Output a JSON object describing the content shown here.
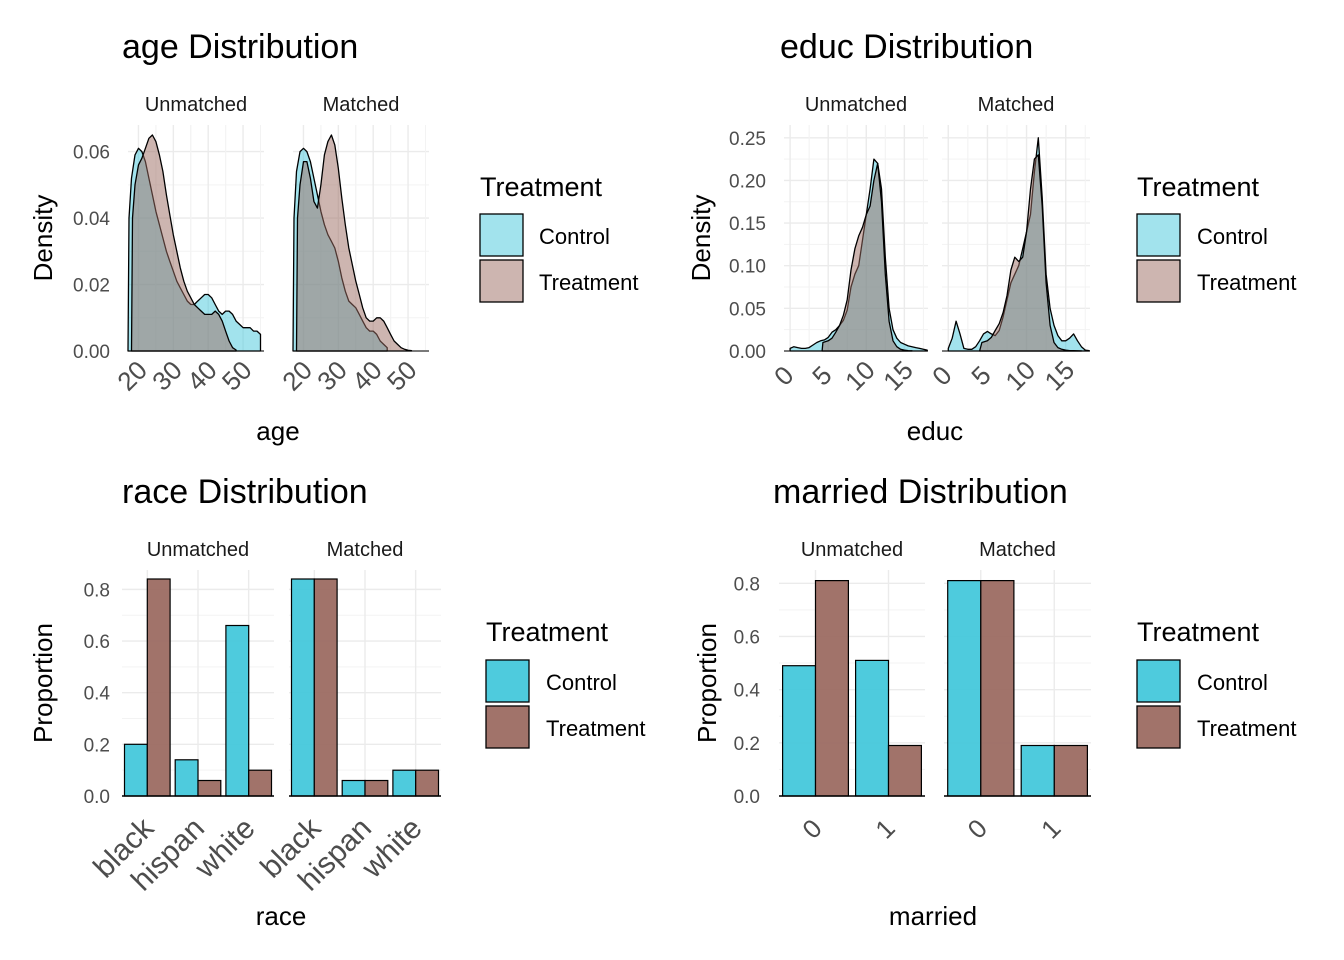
{
  "colors": {
    "control": "#45C8DB",
    "treatment": "#9C6B62"
  },
  "chart_data": [
    {
      "type": "area",
      "title": "age Distribution",
      "xlabel": "age",
      "ylabel": "Density",
      "facets": [
        "Unmatched",
        "Matched"
      ],
      "xlim": [
        17,
        56
      ],
      "ylim": [
        0,
        0.068
      ],
      "xticks": [
        20,
        30,
        40,
        50
      ],
      "xtick_labels": [
        "20",
        "30",
        "40",
        "50"
      ],
      "yticks": [
        0,
        0.02,
        0.04,
        0.06
      ],
      "ytick_labels": [
        "0.00",
        "0.02",
        "0.04",
        "0.06"
      ],
      "grid": true,
      "legend_title": "Treatment",
      "legend": [
        "Control",
        "Treatment"
      ],
      "legend_position": "right",
      "panels": [
        {
          "name": "Unmatched",
          "series": [
            {
              "name": "Control",
              "x": [
                17,
                17.3,
                18,
                19,
                20,
                21,
                22,
                23,
                24,
                25,
                26,
                27,
                28,
                29,
                30,
                31,
                32,
                33,
                34,
                35,
                36,
                37,
                38,
                39,
                40,
                41,
                42,
                43,
                44,
                45,
                46,
                47,
                48,
                49,
                50,
                51,
                52,
                53,
                54,
                55,
                55
              ],
              "y": [
                0,
                0.04,
                0.052,
                0.059,
                0.061,
                0.06,
                0.057,
                0.052,
                0.047,
                0.042,
                0.038,
                0.034,
                0.03,
                0.027,
                0.024,
                0.021,
                0.019,
                0.017,
                0.015,
                0.014,
                0.014,
                0.015,
                0.016,
                0.017,
                0.017,
                0.016,
                0.014,
                0.012,
                0.011,
                0.012,
                0.012,
                0.011,
                0.009,
                0.008,
                0.007,
                0.007,
                0.007,
                0.006,
                0.006,
                0.005,
                0
              ]
            },
            {
              "name": "Treatment",
              "x": [
                18,
                18.3,
                19,
                20,
                21,
                22,
                23,
                24,
                25,
                26,
                27,
                28,
                29,
                30,
                31,
                32,
                33,
                34,
                35,
                36,
                37,
                38,
                39,
                40,
                41,
                42,
                43,
                44,
                45,
                46,
                47,
                48,
                48
              ],
              "y": [
                0,
                0.04,
                0.05,
                0.056,
                0.058,
                0.061,
                0.064,
                0.065,
                0.063,
                0.059,
                0.054,
                0.047,
                0.041,
                0.035,
                0.03,
                0.025,
                0.021,
                0.018,
                0.016,
                0.014,
                0.013,
                0.012,
                0.011,
                0.011,
                0.011,
                0.012,
                0.011,
                0.009,
                0.006,
                0.003,
                0.001,
                0.0003,
                0
              ]
            }
          ]
        },
        {
          "name": "Matched",
          "series": [
            {
              "name": "Control",
              "x": [
                17,
                17.3,
                18,
                19,
                20,
                21,
                22,
                23,
                24,
                25,
                26,
                27,
                28,
                29,
                30,
                31,
                32,
                33,
                34,
                35,
                36,
                37,
                38,
                39,
                40,
                41,
                42,
                43,
                44,
                44
              ],
              "y": [
                0,
                0.04,
                0.054,
                0.06,
                0.061,
                0.06,
                0.057,
                0.052,
                0.047,
                0.042,
                0.038,
                0.035,
                0.033,
                0.031,
                0.027,
                0.022,
                0.018,
                0.015,
                0.014,
                0.013,
                0.011,
                0.009,
                0.007,
                0.006,
                0.006,
                0.005,
                0.003,
                0.002,
                0.001,
                0
              ]
            },
            {
              "name": "Treatment",
              "x": [
                18,
                18.3,
                19,
                20,
                21,
                22,
                23,
                24,
                25,
                26,
                27,
                28,
                29,
                30,
                31,
                32,
                33,
                34,
                35,
                36,
                37,
                38,
                39,
                40,
                41,
                42,
                43,
                44,
                45,
                46,
                47,
                48,
                49,
                50,
                51,
                51
              ],
              "y": [
                0,
                0.04,
                0.05,
                0.057,
                0.057,
                0.052,
                0.045,
                0.043,
                0.05,
                0.059,
                0.063,
                0.065,
                0.062,
                0.055,
                0.046,
                0.038,
                0.031,
                0.026,
                0.021,
                0.017,
                0.013,
                0.01,
                0.009,
                0.009,
                0.01,
                0.01,
                0.009,
                0.007,
                0.005,
                0.003,
                0.002,
                0.001,
                0.0005,
                0.0002,
                0.0001,
                0
              ]
            }
          ]
        }
      ]
    },
    {
      "type": "area",
      "title": "educ Distribution",
      "xlabel": "educ",
      "ylabel": "Density",
      "facets": [
        "Unmatched",
        "Matched"
      ],
      "xlim": [
        -0.8,
        18.1
      ],
      "ylim": [
        0,
        0.265
      ],
      "xticks": [
        0,
        5,
        10,
        15
      ],
      "xtick_labels": [
        "0",
        "5",
        "10",
        "15"
      ],
      "yticks": [
        0,
        0.05,
        0.1,
        0.15,
        0.2,
        0.25
      ],
      "ytick_labels": [
        "0.00",
        "0.05",
        "0.10",
        "0.15",
        "0.20",
        "0.25"
      ],
      "grid": true,
      "legend_title": "Treatment",
      "legend": [
        "Control",
        "Treatment"
      ],
      "legend_position": "right",
      "panels": [
        {
          "name": "Unmatched",
          "series": [
            {
              "name": "Control",
              "x": [
                0,
                0.5,
                1,
                1.5,
                2,
                2.5,
                3,
                3.5,
                4,
                4.5,
                5,
                5.5,
                6,
                6.5,
                7,
                7.5,
                8,
                8.5,
                9,
                9.5,
                10,
                10.5,
                11,
                11.5,
                12,
                12.5,
                13,
                13.5,
                14,
                14.5,
                15,
                15.5,
                16,
                16.5,
                17,
                17.5,
                18
              ],
              "y": [
                0.003,
                0.005,
                0.004,
                0.003,
                0.003,
                0.004,
                0.007,
                0.01,
                0.012,
                0.013,
                0.016,
                0.022,
                0.025,
                0.03,
                0.036,
                0.048,
                0.075,
                0.09,
                0.1,
                0.13,
                0.16,
                0.19,
                0.225,
                0.22,
                0.19,
                0.11,
                0.05,
                0.025,
                0.015,
                0.01,
                0.008,
                0.006,
                0.005,
                0.004,
                0.003,
                0.002,
                0.001
              ]
            },
            {
              "name": "Treatment",
              "x": [
                4.2,
                4.3,
                5,
                5.5,
                6,
                6.5,
                7,
                7.5,
                8,
                8.5,
                9,
                9.5,
                10,
                10.5,
                11,
                11.5,
                12,
                12.5,
                13,
                13.5,
                14,
                14.5,
                15,
                15.5,
                16,
                16
              ],
              "y": [
                0,
                0.01,
                0.012,
                0.015,
                0.022,
                0.03,
                0.042,
                0.06,
                0.095,
                0.12,
                0.135,
                0.145,
                0.16,
                0.17,
                0.2,
                0.22,
                0.175,
                0.09,
                0.035,
                0.012,
                0.005,
                0.002,
                0.001,
                0.0005,
                0.0002,
                0
              ]
            }
          ]
        },
        {
          "name": "Matched",
          "series": [
            {
              "name": "Control",
              "x": [
                0,
                0.5,
                1,
                1.5,
                2,
                2.5,
                3,
                3.5,
                4,
                4.5,
                5,
                5.5,
                6,
                6.5,
                7,
                7.5,
                8,
                8.5,
                9,
                9.5,
                10,
                10.5,
                11,
                11.5,
                12,
                12.5,
                13,
                13.5,
                14,
                14.5,
                15,
                15.5,
                16,
                16.5,
                17,
                17.5,
                18
              ],
              "y": [
                0.003,
                0.015,
                0.035,
                0.02,
                0.003,
                0.002,
                0.002,
                0.005,
                0.012,
                0.02,
                0.023,
                0.02,
                0.018,
                0.024,
                0.04,
                0.06,
                0.08,
                0.09,
                0.1,
                0.12,
                0.14,
                0.16,
                0.21,
                0.25,
                0.18,
                0.09,
                0.05,
                0.03,
                0.018,
                0.012,
                0.012,
                0.015,
                0.02,
                0.012,
                0.005,
                0.001,
                0.0005
              ]
            },
            {
              "name": "Treatment",
              "x": [
                4,
                4.3,
                5,
                5.5,
                6,
                6.5,
                7,
                7.5,
                8,
                8.5,
                9,
                9.5,
                10,
                10.5,
                11,
                11.5,
                12,
                12.5,
                13,
                13.5,
                14,
                14.5,
                15,
                15.5,
                16,
                16.5,
                17,
                17
              ],
              "y": [
                0,
                0.01,
                0.012,
                0.016,
                0.024,
                0.032,
                0.045,
                0.065,
                0.095,
                0.11,
                0.105,
                0.11,
                0.14,
                0.19,
                0.225,
                0.23,
                0.17,
                0.08,
                0.03,
                0.01,
                0.004,
                0.002,
                0.001,
                0.0005,
                0.0003,
                0.0002,
                0.0001,
                0
              ]
            }
          ]
        }
      ]
    },
    {
      "type": "bar",
      "title": "race Distribution",
      "xlabel": "race",
      "ylabel": "Proportion",
      "facets": [
        "Unmatched",
        "Matched"
      ],
      "categories": [
        "black",
        "hispan",
        "white"
      ],
      "ylim": [
        0,
        0.875
      ],
      "yticks": [
        0,
        0.2,
        0.4,
        0.6,
        0.8
      ],
      "ytick_labels": [
        "0.0",
        "0.2",
        "0.4",
        "0.6",
        "0.8"
      ],
      "grid": true,
      "legend_title": "Treatment",
      "legend": [
        "Control",
        "Treatment"
      ],
      "legend_position": "right",
      "panels": [
        {
          "name": "Unmatched",
          "series": [
            {
              "name": "Control",
              "values": [
                0.2,
                0.14,
                0.66
              ]
            },
            {
              "name": "Treatment",
              "values": [
                0.84,
                0.06,
                0.1
              ]
            }
          ]
        },
        {
          "name": "Matched",
          "series": [
            {
              "name": "Control",
              "values": [
                0.84,
                0.06,
                0.1
              ]
            },
            {
              "name": "Treatment",
              "values": [
                0.84,
                0.06,
                0.1
              ]
            }
          ]
        }
      ]
    },
    {
      "type": "bar",
      "title": "married Distribution",
      "xlabel": "married",
      "ylabel": "Proportion",
      "facets": [
        "Unmatched",
        "Matched"
      ],
      "categories": [
        "0",
        "1"
      ],
      "ylim": [
        0,
        0.85
      ],
      "yticks": [
        0,
        0.2,
        0.4,
        0.6,
        0.8
      ],
      "ytick_labels": [
        "0.0",
        "0.2",
        "0.4",
        "0.6",
        "0.8"
      ],
      "grid": true,
      "legend_title": "Treatment",
      "legend": [
        "Control",
        "Treatment"
      ],
      "legend_position": "right",
      "panels": [
        {
          "name": "Unmatched",
          "series": [
            {
              "name": "Control",
              "values": [
                0.49,
                0.51
              ]
            },
            {
              "name": "Treatment",
              "values": [
                0.81,
                0.19
              ]
            }
          ]
        },
        {
          "name": "Matched",
          "series": [
            {
              "name": "Control",
              "values": [
                0.81,
                0.19
              ]
            },
            {
              "name": "Treatment",
              "values": [
                0.81,
                0.19
              ]
            }
          ]
        }
      ]
    }
  ]
}
